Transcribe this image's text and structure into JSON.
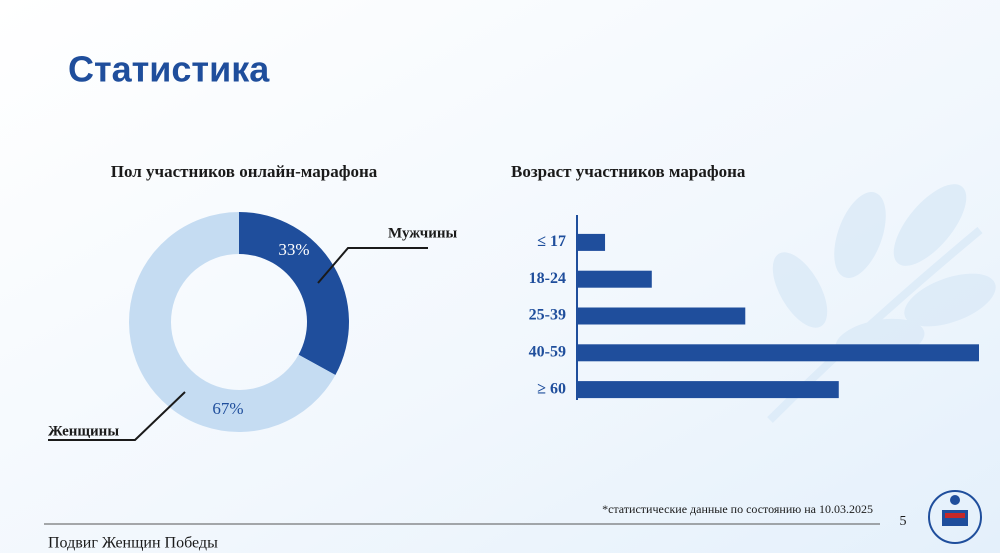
{
  "header": {
    "title": "Статистика"
  },
  "note": "*статистические данные по состоянию на 10.03.2025",
  "page_number": "5",
  "footer": "Подвиг Женщин Победы",
  "chart_data": [
    {
      "type": "donut",
      "title": "Пол участников онлайн-марафона",
      "categories": [
        "Мужчины",
        "Женщины"
      ],
      "values": [
        33,
        67
      ],
      "value_labels": [
        "33%",
        "67%"
      ],
      "colors": [
        "#1f4e9c",
        "#c5dcf2"
      ]
    },
    {
      "type": "hbar",
      "title": "Возраст участников марафона",
      "categories": [
        "≤ 17",
        "18-24",
        "25-39",
        "40-59",
        "≥ 60"
      ],
      "values": [
        3,
        8,
        18,
        43,
        28
      ],
      "color": "#1f4e9c"
    }
  ]
}
